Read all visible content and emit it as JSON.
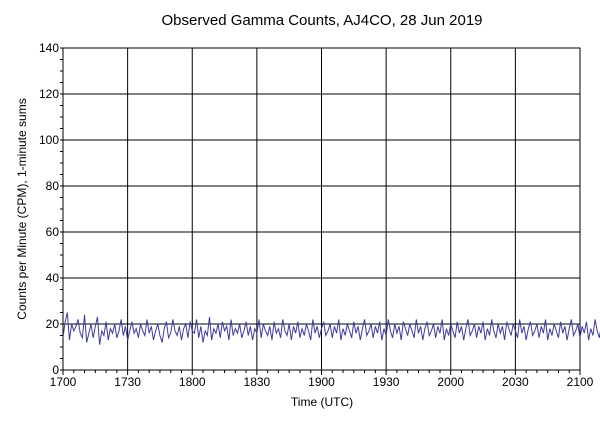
{
  "chart_data": {
    "type": "line",
    "title": "Observed Gamma Counts, AJ4CO, 28 Jun 2019",
    "xlabel": "Time (UTC)",
    "ylabel": "Counts per Minute (CPM), 1-minute sums",
    "x_ticks": [
      "1700",
      "1730",
      "1800",
      "1830",
      "1900",
      "1930",
      "2000",
      "2030",
      "2100"
    ],
    "y_ticks": [
      "0",
      "20",
      "40",
      "60",
      "80",
      "100",
      "120",
      "140"
    ],
    "xlim": [
      "17:00",
      "21:00"
    ],
    "ylim": [
      0,
      140
    ],
    "grid": true,
    "legend": "none",
    "series_color": "#3c3ca0",
    "series": [
      {
        "x_start": "17:00",
        "x_step_minutes": 1,
        "values": [
          14,
          21,
          25,
          13,
          20,
          17,
          19,
          22,
          16,
          14,
          24,
          12,
          16,
          20,
          14,
          19,
          23,
          11,
          17,
          15,
          21,
          13,
          18,
          16,
          20,
          14,
          17,
          22,
          15,
          19,
          13,
          17,
          21,
          16,
          18,
          14,
          20,
          17,
          15,
          22,
          16,
          19,
          13,
          17,
          20,
          15,
          12,
          18,
          21,
          14,
          16,
          22,
          17,
          15,
          19,
          13,
          18,
          20,
          14,
          21,
          17,
          16,
          22,
          14,
          19,
          12,
          17,
          15,
          23,
          13,
          18,
          16,
          20,
          14,
          21,
          17,
          19,
          13,
          22,
          15,
          18,
          16,
          20,
          14,
          17,
          21,
          15,
          19,
          13,
          18,
          16,
          22,
          14,
          20,
          17,
          15,
          19,
          13,
          21,
          16,
          18,
          14,
          22,
          17,
          15,
          20,
          13,
          19,
          16,
          21,
          14,
          18,
          15,
          20,
          17,
          13,
          22,
          16,
          19,
          14,
          18,
          21,
          15,
          17,
          20,
          14,
          19,
          16,
          22,
          13,
          18,
          15,
          20,
          17,
          14,
          21,
          16,
          19,
          13,
          18,
          22,
          15,
          17,
          20,
          14,
          19,
          16,
          21,
          13,
          18,
          15,
          22,
          17,
          14,
          20,
          16,
          19,
          13,
          21,
          18,
          15,
          20,
          17,
          14,
          22,
          16,
          19,
          13,
          18,
          21,
          15,
          17,
          20,
          14,
          19,
          16,
          22,
          13,
          18,
          15,
          20,
          17,
          14,
          21,
          16,
          19,
          13,
          18,
          22,
          15,
          17,
          20,
          14,
          19,
          16,
          21,
          13,
          18,
          15,
          22,
          17,
          14,
          20,
          16,
          19,
          13,
          21,
          18,
          15,
          20,
          17,
          14,
          22,
          16,
          19,
          13,
          18,
          21,
          15,
          17,
          20,
          14,
          19,
          16,
          22,
          13,
          18,
          15,
          20,
          17,
          14,
          21,
          16,
          19,
          13,
          18,
          22,
          15,
          17,
          20,
          14,
          19,
          16,
          21,
          13,
          18,
          15,
          22,
          17,
          14,
          20,
          16
        ]
      }
    ]
  }
}
